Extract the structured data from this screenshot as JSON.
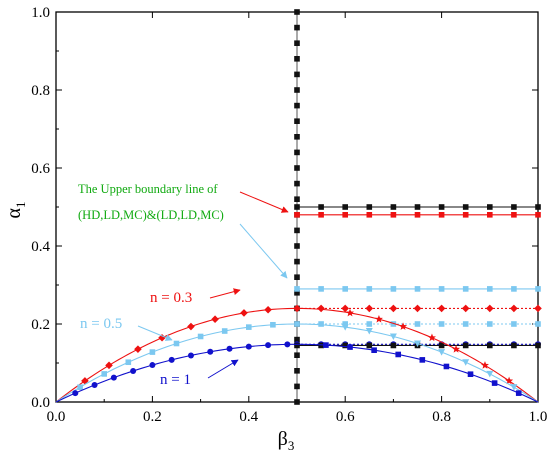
{
  "chart_data": {
    "type": "line",
    "title": "",
    "xlabel": {
      "symbol": "β",
      "sub": "3"
    },
    "ylabel": {
      "symbol": "α",
      "sub": "1"
    },
    "xlim": [
      0,
      1
    ],
    "ylim": [
      0,
      1
    ],
    "xticks": [
      0,
      0.2,
      0.4,
      0.6,
      0.8,
      1
    ],
    "yticks": [
      0,
      0.2,
      0.4,
      0.6,
      0.8,
      1
    ],
    "xtick_labels": [
      "0.0",
      "0.2",
      "0.4",
      "0.6",
      "0.8",
      "1.0"
    ],
    "ytick_labels": [
      "0.0",
      "0.2",
      "0.4",
      "0.6",
      "0.8",
      "1.0"
    ],
    "grid": false,
    "legend": "none",
    "colors": {
      "red": "#ee1111",
      "light_blue": "#7cc8f0",
      "blue": "#1111cc",
      "black": "#111111",
      "green": "#11aa11"
    },
    "vertical_line": {
      "x": 0.5,
      "y_markers": [
        0,
        0.04,
        0.08,
        0.12,
        0.16,
        0.2,
        0.24,
        0.28,
        0.32,
        0.36,
        0.4,
        0.44,
        0.48,
        0.52,
        0.56,
        0.6,
        0.64,
        0.68,
        0.72,
        0.76,
        0.8,
        0.84,
        0.88,
        0.92,
        0.96,
        1.0
      ]
    },
    "horizontal_lines": [
      {
        "id": "h-black-top",
        "y": 0.5,
        "color": "#111111",
        "marker": "square",
        "dotted": false
      },
      {
        "id": "h-red-top",
        "y": 0.48,
        "color": "#ee1111",
        "marker": "square",
        "dotted": false
      },
      {
        "id": "h-lightblue-top",
        "y": 0.29,
        "color": "#7cc8f0",
        "marker": "square",
        "dotted": false
      },
      {
        "id": "h-red-diamond",
        "y": 0.24,
        "color": "#ee1111",
        "marker": "diamond",
        "dotted": true
      },
      {
        "id": "h-lightblue-mid",
        "y": 0.2,
        "color": "#7cc8f0",
        "marker": "square",
        "dotted": true
      },
      {
        "id": "h-blue-dots",
        "y": 0.148,
        "color": "#1111cc",
        "marker": "circle",
        "dotted": true
      },
      {
        "id": "h-black-bottom",
        "y": 0.145,
        "color": "#111111",
        "marker": "square",
        "dotted": false
      }
    ],
    "horizontal_marker_x": [
      0.5,
      0.55,
      0.6,
      0.65,
      0.7,
      0.75,
      0.8,
      0.85,
      0.9,
      0.95,
      1.0
    ],
    "curves": [
      {
        "id": "n-0.3",
        "peak": 0.24,
        "color": "#ee1111",
        "marker": "diamond",
        "rise_marker_x": [
          0.06,
          0.11,
          0.17,
          0.22,
          0.28,
          0.33,
          0.39,
          0.44
        ],
        "fall_marker_x": [
          0.61,
          0.67,
          0.72,
          0.78,
          0.83,
          0.89,
          0.94
        ],
        "fall_marker": "star"
      },
      {
        "id": "n-0.5",
        "peak": 0.2,
        "color": "#7cc8f0",
        "marker": "square",
        "rise_marker_x": [
          0.05,
          0.1,
          0.15,
          0.2,
          0.25,
          0.3,
          0.35,
          0.4,
          0.45
        ],
        "fall_marker_x": [
          0.6,
          0.65,
          0.7,
          0.75,
          0.8,
          0.85,
          0.9,
          0.95
        ],
        "fall_marker": "triangle-down"
      },
      {
        "id": "n-1",
        "peak": 0.148,
        "color": "#1111cc",
        "marker": "circle",
        "rise_marker_x": [
          0.04,
          0.08,
          0.12,
          0.16,
          0.2,
          0.24,
          0.28,
          0.32,
          0.36,
          0.4,
          0.44,
          0.48
        ],
        "fall_marker_x": [
          0.56,
          0.61,
          0.66,
          0.71,
          0.76,
          0.81,
          0.86,
          0.91,
          0.96
        ],
        "fall_marker": "square"
      }
    ],
    "annotations": {
      "upper_boundary_line1": "The Upper boundary line of",
      "upper_boundary_line2": "(HD,LD,MC)&(LD,LD,MC)",
      "n03": "n = 0.3",
      "n05": "n = 0.5",
      "n1": "n = 1"
    }
  }
}
